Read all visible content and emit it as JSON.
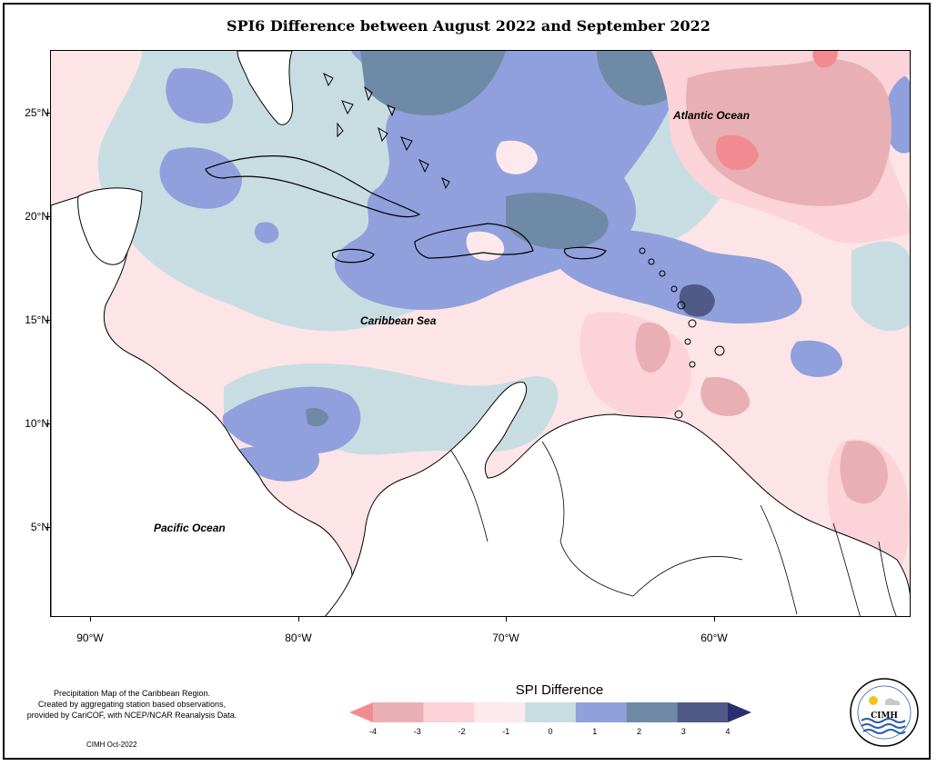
{
  "title": "SPI6 Difference between August 2022 and September 2022",
  "map_labels": {
    "atlantic": "Atlantic Ocean",
    "caribbean": "Caribbean Sea",
    "pacific": "Pacific Ocean"
  },
  "lat_ticks": [
    "25°N",
    "20°N",
    "15°N",
    "10°N",
    "5°N"
  ],
  "lon_ticks": [
    "90°W",
    "80°W",
    "70°W",
    "60°W"
  ],
  "note_lines": [
    "Precipitation Map of the Caribbean Region.",
    "Created by aggregating station based observations,",
    "provided by CariCOF, with NCEP/NCAR Reanalysis Data."
  ],
  "credit": "CIMH Oct-2022",
  "legend": {
    "title": "SPI Difference",
    "labels": [
      "-4",
      "-3",
      "-2",
      "-1",
      "0",
      "1",
      "2",
      "3",
      "4"
    ],
    "colors": [
      "#f28b91",
      "#e8b0b4",
      "#fbd3d9",
      "#fde9ec",
      "#c8dde2",
      "#8fa0dc",
      "#6f8aa6",
      "#4f5a88",
      "#2c2e6e"
    ]
  },
  "logo": {
    "text": "CIMH",
    "icon": "cimh-logo-icon"
  }
}
